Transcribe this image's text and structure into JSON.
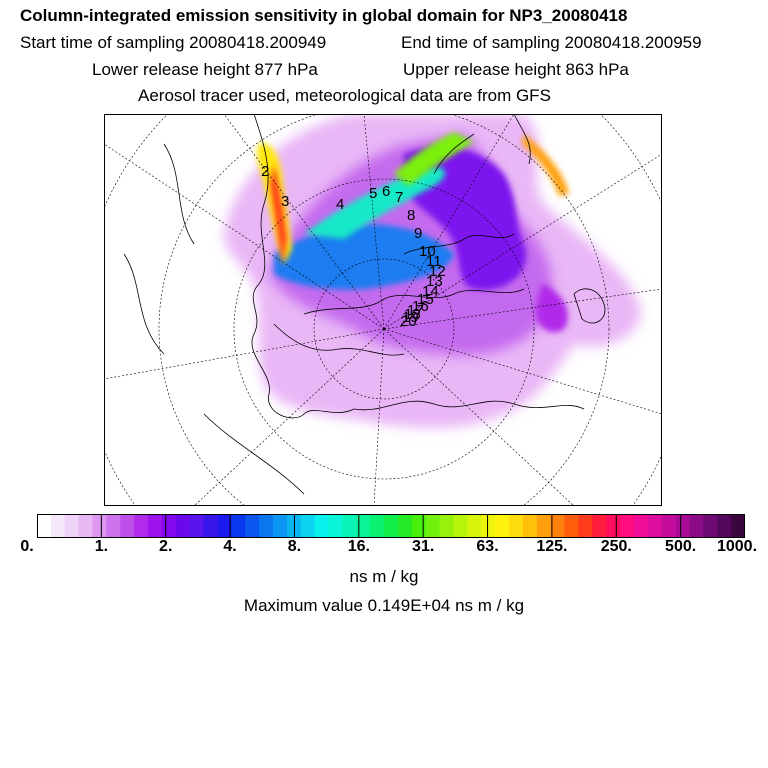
{
  "header": {
    "title": "Column-integrated emission sensitivity in global domain for NP3_20080418",
    "start_time": "Start time of sampling 20080418.200949",
    "end_time": "End time of sampling 20080418.200959",
    "lower_release": "Lower release height  877 hPa",
    "upper_release": "Upper release height  863 hPa",
    "tracer_note": "Aerosol tracer used, meteorological data are from GFS"
  },
  "map": {
    "projection": "polar stereographic (north pole)",
    "trajectory_labels": [
      "2",
      "3",
      "4",
      "5",
      "6",
      "7",
      "8",
      "9",
      "10",
      "11",
      "12",
      "13",
      "14",
      "15",
      "16",
      "17",
      "18",
      "19",
      "20"
    ]
  },
  "colorbar": {
    "tick_labels": [
      "0.",
      "1.",
      "2.",
      "4.",
      "8.",
      "16.",
      "31.",
      "63.",
      "125.",
      "250.",
      "500.",
      "1000."
    ],
    "colors": [
      "#ffffff",
      "#f6e8fb",
      "#efd3f8",
      "#e8b8f5",
      "#dd97f2",
      "#cf72ee",
      "#bf4fea",
      "#b12cea",
      "#9c13ee",
      "#8408ee",
      "#6c08ec",
      "#5a14ee",
      "#3a16ea",
      "#1c1aee",
      "#0a36ee",
      "#0a56ee",
      "#0a76f0",
      "#0a96f2",
      "#0ab6f2",
      "#0ad4f0",
      "#0af0ee",
      "#0af4d8",
      "#0af4b8",
      "#0af496",
      "#0af070",
      "#10ec48",
      "#24ea28",
      "#48ee0c",
      "#70f00c",
      "#96f20c",
      "#b8f40c",
      "#d6f40c",
      "#eef40c",
      "#fff20c",
      "#ffdc0c",
      "#ffc00c",
      "#ffa00c",
      "#ff800c",
      "#ff5c0c",
      "#ff3c1c",
      "#ff1c3c",
      "#ff0c5c",
      "#ff0c80",
      "#f00c96",
      "#dc0c9e",
      "#c40c9c",
      "#a80c96",
      "#8c0c88",
      "#6e0a74",
      "#54085c",
      "#3a0640"
    ],
    "units": "ns m / kg",
    "max_value": "Maximum value  0.149E+04 ns m / kg"
  }
}
